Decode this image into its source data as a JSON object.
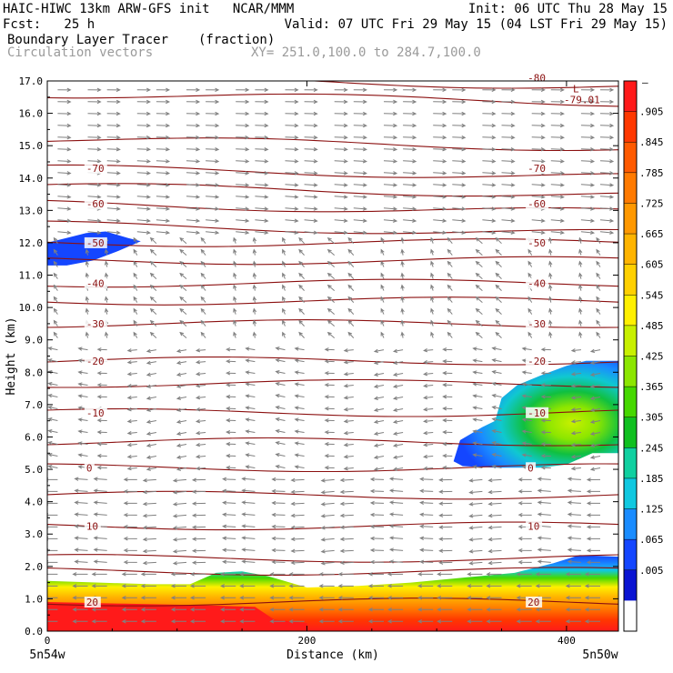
{
  "header": {
    "model_line": "HAIC-HIWC 13km ARW-GFS init   NCAR/MMM",
    "init_line": "Init: 06 UTC Thu 28 May 15",
    "fcst_line": "Fcst:   25 h",
    "valid_line": "Valid: 07 UTC Fri 29 May 15 (04 LST Fri 29 May 15)",
    "field_name": "Boundary Layer Tracer",
    "field_unit": "(fraction)",
    "vector_name": "Circulation vectors",
    "xy_line": "XY= 251.0,100.0 to 284.7,100.0"
  },
  "chart_data": {
    "type": "heatmap",
    "title": "Boundary Layer Tracer (fraction)",
    "xlabel": "Distance (km)",
    "ylabel": "Height (km)",
    "xlim": [
      0,
      440
    ],
    "ylim": [
      0,
      17
    ],
    "x_ticks": [
      0,
      200,
      400
    ],
    "y_ticks": [
      "0.0",
      "1.0",
      "2.0",
      "3.0",
      "4.0",
      "5.0",
      "6.0",
      "7.0",
      "8.0",
      "9.0",
      "10.0",
      "11.0",
      "12.0",
      "13.0",
      "14.0",
      "15.0",
      "16.0",
      "17.0"
    ],
    "endpoint_labels": {
      "left": "5n54w",
      "right": "5n50w"
    },
    "colorbar": {
      "top_label": "–",
      "levels": [
        ".905",
        ".845",
        ".785",
        ".725",
        ".665",
        ".605",
        ".545",
        ".485",
        ".425",
        ".365",
        ".305",
        ".245",
        ".185",
        ".125",
        ".065",
        ".005"
      ],
      "colors": [
        "#ff1a1a",
        "#ff3800",
        "#ff5a00",
        "#ff7a00",
        "#ff9800",
        "#ffb400",
        "#ffd000",
        "#fff000",
        "#c8f000",
        "#8ce600",
        "#46d800",
        "#10c020",
        "#10d0a0",
        "#10c8e0",
        "#1a8cff",
        "#1446ff",
        "#0a14d2",
        "#ffffff"
      ]
    },
    "temperature_contours": {
      "unit": "°C",
      "levels": [
        {
          "value": -80,
          "height_km": 17.1,
          "label": "-80"
        },
        {
          "value": -70,
          "height_km": 14.3,
          "label": "-70"
        },
        {
          "value": -60,
          "height_km": 13.2,
          "label": "-60"
        },
        {
          "value": -50,
          "height_km": 12.0,
          "label": "-50"
        },
        {
          "value": -40,
          "height_km": 10.75,
          "label": "-40"
        },
        {
          "value": -30,
          "height_km": 9.5,
          "label": "-30"
        },
        {
          "value": -20,
          "height_km": 8.35,
          "label": "-20"
        },
        {
          "value": -10,
          "height_km": 6.75,
          "label": "-10"
        },
        {
          "value": 0,
          "height_km": 5.05,
          "label": "0"
        },
        {
          "value": 10,
          "height_km": 3.25,
          "label": "10"
        },
        {
          "value": 20,
          "height_km": 0.9,
          "label": "20"
        }
      ],
      "extra_lines_km": [
        16.6,
        15.2,
        13.75,
        12.55,
        11.45,
        10.2,
        7.65,
        5.85,
        4.2,
        2.25,
        1.85
      ]
    },
    "min_marker": {
      "symbol": "L",
      "value": "-79.01",
      "x_km": 398,
      "y_km": 16.7
    },
    "tracer_regions": [
      {
        "name": "boundary layer",
        "x_range_km": [
          0,
          440
        ],
        "height_km": [
          0,
          2.35
        ],
        "max_value": 0.95
      },
      {
        "name": "upper cloud",
        "x_range_km": [
          313,
          440
        ],
        "height_km": [
          5.05,
          8.35
        ],
        "max_value": 0.42
      },
      {
        "name": "upper left patch",
        "x_range_km": [
          0,
          72
        ],
        "height_km": [
          11.3,
          12.35
        ],
        "max_value": 0.04
      }
    ]
  }
}
